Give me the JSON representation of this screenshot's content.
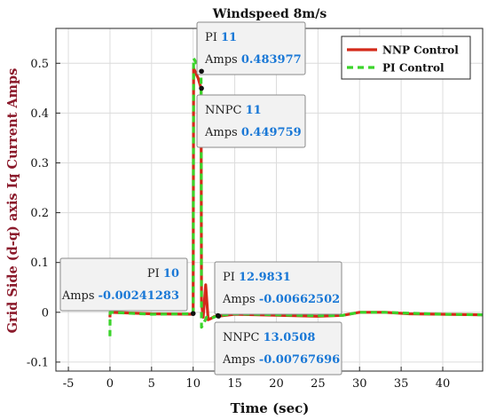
{
  "chart_data": {
    "type": "line",
    "title": "Windspeed 8m/s",
    "xlabel": "Time (sec)",
    "ylabel": "Grid Side (d-q) axis Iq Current Amps",
    "xlim": [
      -6.5,
      44.8
    ],
    "ylim": [
      -0.118,
      0.57
    ],
    "xticks": [
      -5,
      0,
      5,
      10,
      15,
      20,
      25,
      30,
      35,
      40
    ],
    "yticks": [
      -0.1,
      0,
      0.1,
      0.2,
      0.3,
      0.4,
      0.5
    ],
    "ytick_labels": [
      "-0.1",
      "0",
      "0.1",
      "0.2",
      "0.3",
      "0.4",
      "0.5"
    ],
    "grid": true,
    "legend_position": "top-right",
    "series": [
      {
        "name": "NNP Control",
        "color": "#d42a1a",
        "style": "solid",
        "points": [
          [
            0,
            -0.01
          ],
          [
            0.02,
            0.0
          ],
          [
            5,
            -0.003
          ],
          [
            9.95,
            -0.004
          ],
          [
            10,
            0.0
          ],
          [
            10.05,
            0.49
          ],
          [
            10.6,
            0.47
          ],
          [
            10.95,
            0.45
          ],
          [
            11.0,
            0.02
          ],
          [
            11.2,
            -0.01
          ],
          [
            11.5,
            0.055
          ],
          [
            11.8,
            -0.015
          ],
          [
            12.2,
            -0.012
          ],
          [
            12.6,
            -0.008
          ],
          [
            13.05,
            -0.0077
          ],
          [
            15,
            -0.004
          ],
          [
            20,
            -0.006
          ],
          [
            25,
            -0.008
          ],
          [
            28,
            -0.006
          ],
          [
            30,
            0.0
          ],
          [
            33,
            0.0
          ],
          [
            36,
            -0.003
          ],
          [
            40,
            -0.004
          ],
          [
            44.8,
            -0.005
          ]
        ]
      },
      {
        "name": "PI Control",
        "color": "#3bd42b",
        "style": "dashed",
        "points": [
          [
            0,
            -0.048
          ],
          [
            0.02,
            0.0
          ],
          [
            5,
            -0.004
          ],
          [
            9.95,
            -0.003
          ],
          [
            10,
            0.0
          ],
          [
            10.05,
            0.51
          ],
          [
            10.4,
            0.5
          ],
          [
            10.95,
            0.484
          ],
          [
            11.0,
            -0.03
          ],
          [
            11.2,
            -0.025
          ],
          [
            11.6,
            -0.01
          ],
          [
            12.2,
            -0.012
          ],
          [
            12.98,
            -0.0066
          ],
          [
            15,
            -0.003
          ],
          [
            20,
            -0.005
          ],
          [
            25,
            -0.007
          ],
          [
            28,
            -0.006
          ],
          [
            30,
            0.0
          ],
          [
            33,
            0.0
          ],
          [
            36,
            -0.002
          ],
          [
            40,
            -0.004
          ],
          [
            44.8,
            -0.005
          ]
        ]
      }
    ],
    "annotations": [
      {
        "id": "tip-pi-11",
        "x": 11,
        "y": 0.483977,
        "lines": [
          [
            "PI",
            "11"
          ],
          [
            "Amps",
            "0.483977"
          ]
        ]
      },
      {
        "id": "tip-nnpc-11",
        "x": 11,
        "y": 0.449759,
        "lines": [
          [
            "NNPC",
            "11"
          ],
          [
            "Amps",
            "0.449759"
          ]
        ]
      },
      {
        "id": "tip-pi-10",
        "x": 10,
        "y": -0.00241283,
        "lines": [
          [
            "PI",
            "10"
          ],
          [
            "Amps",
            "-0.00241283"
          ]
        ]
      },
      {
        "id": "tip-pi-12",
        "x": 12.9831,
        "y": -0.00662502,
        "lines": [
          [
            "PI",
            "12.9831"
          ],
          [
            "Amps",
            "-0.00662502"
          ]
        ]
      },
      {
        "id": "tip-nnpc-13",
        "x": 13.0508,
        "y": -0.00767696,
        "lines": [
          [
            "NNPC",
            "13.0508"
          ],
          [
            "Amps",
            "-0.00767696"
          ]
        ]
      }
    ]
  }
}
